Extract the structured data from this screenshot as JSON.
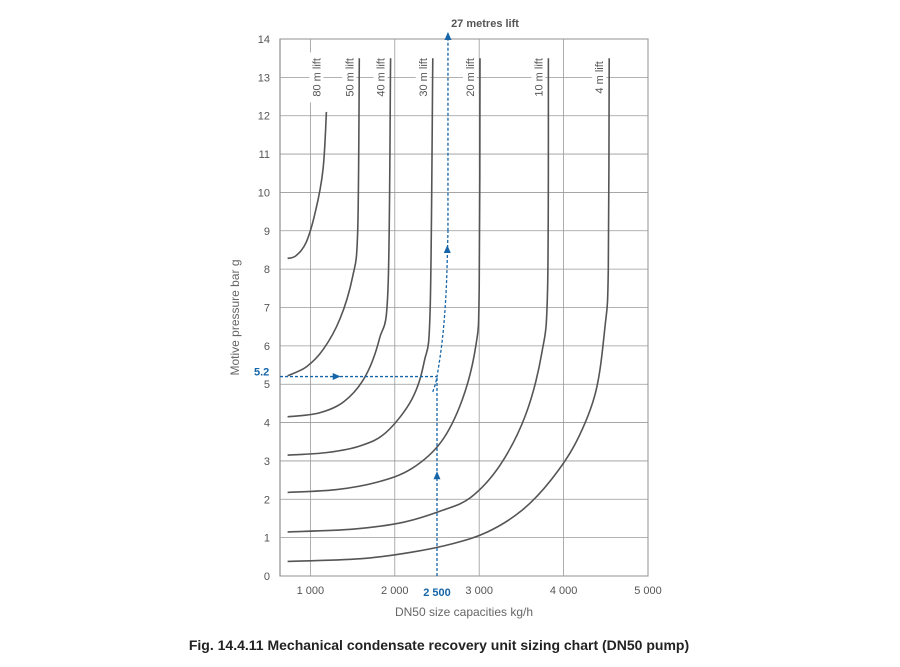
{
  "figure": {
    "caption": "Fig. 14.4.11 Mechanical condensate recovery unit sizing chart (DN50 pump)"
  },
  "chart_data": {
    "type": "line",
    "title": "",
    "xlabel": "DN50 size capacities kg/h",
    "ylabel": "Motive pressure bar g",
    "xlim": [
      640,
      5000
    ],
    "ylim": [
      0,
      14
    ],
    "x_ticks": [
      {
        "value": 1000,
        "label": "1 000"
      },
      {
        "value": 2000,
        "label": "2 000"
      },
      {
        "value": 3000,
        "label": "3 000"
      },
      {
        "value": 4000,
        "label": "4 000"
      },
      {
        "value": 5000,
        "label": "5 000"
      }
    ],
    "y_ticks": [
      0,
      1,
      2,
      3,
      4,
      5,
      6,
      7,
      8,
      9,
      10,
      11,
      12,
      13,
      14
    ],
    "grid": true,
    "series": [
      {
        "name": "80 m lift",
        "points": [
          [
            730,
            8.28
          ],
          [
            830,
            8.35
          ],
          [
            950,
            8.7
          ],
          [
            1060,
            9.5
          ],
          [
            1150,
            10.6
          ],
          [
            1190,
            12.1
          ]
        ]
      },
      {
        "name": "50 m lift",
        "points": [
          [
            730,
            5.22
          ],
          [
            950,
            5.45
          ],
          [
            1150,
            5.9
          ],
          [
            1350,
            6.7
          ],
          [
            1500,
            7.8
          ],
          [
            1560,
            9.0
          ],
          [
            1580,
            13.5
          ]
        ]
      },
      {
        "name": "40 m lift",
        "points": [
          [
            730,
            4.15
          ],
          [
            1100,
            4.25
          ],
          [
            1400,
            4.55
          ],
          [
            1650,
            5.2
          ],
          [
            1820,
            6.2
          ],
          [
            1920,
            7.5
          ],
          [
            1950,
            13.5
          ]
        ]
      },
      {
        "name": "30 m lift",
        "points": [
          [
            730,
            3.15
          ],
          [
            1200,
            3.22
          ],
          [
            1600,
            3.4
          ],
          [
            1900,
            3.75
          ],
          [
            2200,
            4.6
          ],
          [
            2350,
            5.6
          ],
          [
            2420,
            7.0
          ],
          [
            2450,
            13.5
          ]
        ]
      },
      {
        "name": "20 m lift",
        "points": [
          [
            730,
            2.18
          ],
          [
            1300,
            2.25
          ],
          [
            1800,
            2.45
          ],
          [
            2200,
            2.8
          ],
          [
            2550,
            3.5
          ],
          [
            2800,
            4.6
          ],
          [
            2960,
            6.0
          ],
          [
            3000,
            7.5
          ],
          [
            3010,
            13.5
          ]
        ]
      },
      {
        "name": "10 m lift",
        "points": [
          [
            730,
            1.15
          ],
          [
            1500,
            1.22
          ],
          [
            2100,
            1.4
          ],
          [
            2550,
            1.7
          ],
          [
            2900,
            2.05
          ],
          [
            3250,
            2.9
          ],
          [
            3550,
            4.2
          ],
          [
            3740,
            5.8
          ],
          [
            3810,
            7.5
          ],
          [
            3820,
            13.5
          ]
        ]
      },
      {
        "name": "4 m lift",
        "points": [
          [
            730,
            0.38
          ],
          [
            1600,
            0.45
          ],
          [
            2200,
            0.62
          ],
          [
            2700,
            0.85
          ],
          [
            3100,
            1.15
          ],
          [
            3500,
            1.7
          ],
          [
            3850,
            2.5
          ],
          [
            4150,
            3.5
          ],
          [
            4380,
            4.8
          ],
          [
            4490,
            6.5
          ],
          [
            4530,
            8.0
          ],
          [
            4540,
            13.5
          ]
        ]
      }
    ],
    "annotations": {
      "lift_result": "27 metres lift",
      "pressure_value": "5.2",
      "capacity_value": "2 500"
    },
    "example_path": {
      "vertical_up": {
        "x": 2500,
        "y_from": 0,
        "y_to": 5.2
      },
      "horizontal": {
        "x_from": 640,
        "x_to": 2500,
        "y": 5.2
      },
      "interpolated_curve": [
        [
          2450,
          4.8
        ],
        [
          2500,
          5.2
        ],
        [
          2570,
          6.3
        ],
        [
          2610,
          7.5
        ],
        [
          2630,
          9.0
        ]
      ],
      "vertical_to_top": {
        "x": 2630,
        "y_from": 9.0,
        "y_to": 14.0
      }
    }
  }
}
